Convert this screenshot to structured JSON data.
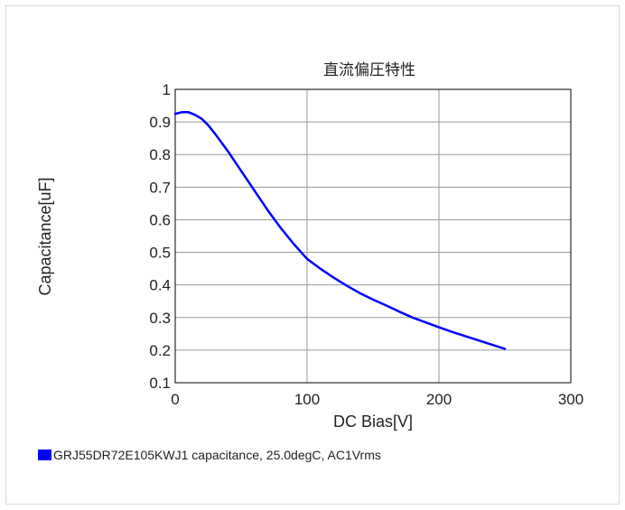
{
  "chart_data": {
    "type": "line",
    "title": "直流偏圧特性",
    "xlabel": "DC Bias[V]",
    "ylabel": "Capacitance[uF]",
    "xlim": [
      0,
      300
    ],
    "ylim": [
      0.1,
      1
    ],
    "x_ticks": [
      "0",
      "100",
      "200",
      "300"
    ],
    "y_ticks": [
      "0.1",
      "0.2",
      "0.3",
      "0.4",
      "0.5",
      "0.6",
      "0.7",
      "0.8",
      "0.9",
      "1"
    ],
    "grid": true,
    "legend_position": "bottom-left",
    "series": [
      {
        "name": "GRJ55DR72E105KWJ1 capacitance, 25.0degC, AC1Vrms",
        "color": "#0000ff",
        "x": [
          0,
          5,
          10,
          15,
          20,
          25,
          30,
          40,
          50,
          60,
          70,
          80,
          90,
          100,
          110,
          120,
          130,
          140,
          150,
          160,
          170,
          180,
          190,
          200,
          210,
          220,
          230,
          240,
          250
        ],
        "y": [
          0.925,
          0.93,
          0.93,
          0.922,
          0.91,
          0.89,
          0.865,
          0.81,
          0.75,
          0.69,
          0.63,
          0.575,
          0.525,
          0.48,
          0.45,
          0.423,
          0.398,
          0.375,
          0.355,
          0.337,
          0.318,
          0.3,
          0.285,
          0.27,
          0.256,
          0.243,
          0.23,
          0.217,
          0.204
        ]
      }
    ]
  }
}
